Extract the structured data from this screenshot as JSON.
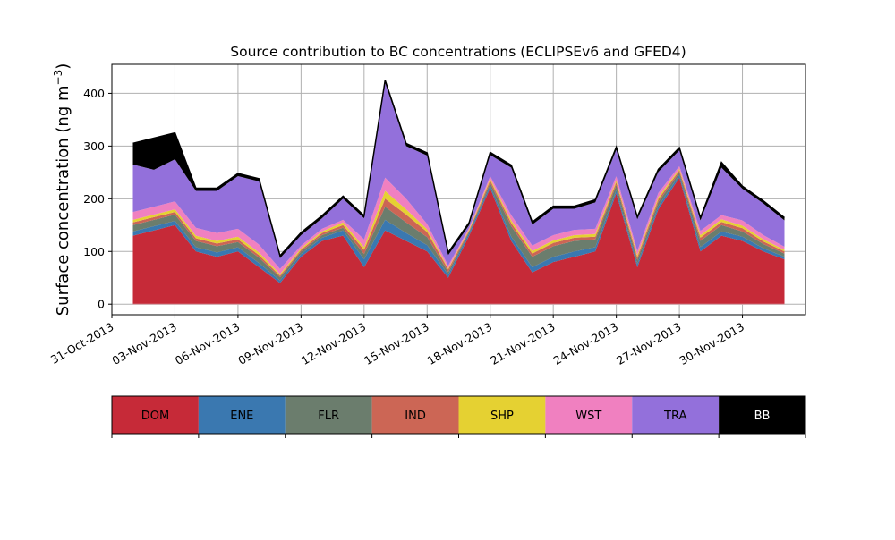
{
  "chart_data": {
    "type": "area",
    "title": "Source contribution to BC concentrations (ECLIPSEv6 and GFED4)",
    "xlabel": "",
    "ylabel": "Surface concentration (ng m⁻³)",
    "ylabel_parts": {
      "text": "Surface concentration (ng m",
      "sup": "−3",
      "close": ")"
    },
    "stacked": true,
    "grid": true,
    "legend_position": "bottom",
    "xlim": [
      "2013-10-31",
      "2013-12-03"
    ],
    "ylim": [
      -20,
      455
    ],
    "yticks": [
      0,
      100,
      200,
      300,
      400
    ],
    "xticks": [
      "31-Oct-2013",
      "03-Nov-2013",
      "06-Nov-2013",
      "09-Nov-2013",
      "12-Nov-2013",
      "15-Nov-2013",
      "18-Nov-2013",
      "21-Nov-2013",
      "24-Nov-2013",
      "27-Nov-2013",
      "30-Nov-2013"
    ],
    "x": [
      "2013-11-01",
      "2013-11-02",
      "2013-11-03",
      "2013-11-04",
      "2013-11-05",
      "2013-11-06",
      "2013-11-07",
      "2013-11-08",
      "2013-11-09",
      "2013-11-10",
      "2013-11-11",
      "2013-11-12",
      "2013-11-13",
      "2013-11-14",
      "2013-11-15",
      "2013-11-16",
      "2013-11-17",
      "2013-11-18",
      "2013-11-19",
      "2013-11-20",
      "2013-11-21",
      "2013-11-22",
      "2013-11-23",
      "2013-11-24",
      "2013-11-25",
      "2013-11-26",
      "2013-11-27",
      "2013-11-28",
      "2013-11-29",
      "2013-11-30",
      "2013-12-01",
      "2013-12-02"
    ],
    "series": [
      {
        "name": "DOM",
        "color": "#c62a38",
        "values": [
          130,
          140,
          150,
          100,
          90,
          100,
          70,
          40,
          90,
          120,
          130,
          70,
          140,
          120,
          100,
          50,
          130,
          220,
          120,
          60,
          80,
          90,
          100,
          210,
          70,
          180,
          240,
          100,
          130,
          120,
          100,
          85
        ]
      },
      {
        "name": "ENE",
        "color": "#3a78b0",
        "values": [
          8,
          8,
          8,
          8,
          8,
          8,
          8,
          5,
          5,
          6,
          10,
          15,
          20,
          15,
          12,
          6,
          5,
          5,
          8,
          10,
          10,
          10,
          8,
          6,
          6,
          6,
          5,
          8,
          8,
          8,
          6,
          5
        ]
      },
      {
        "name": "FLR",
        "color": "#6b7d6d",
        "values": [
          12,
          12,
          12,
          12,
          12,
          10,
          10,
          6,
          5,
          5,
          5,
          10,
          25,
          20,
          15,
          5,
          3,
          5,
          20,
          20,
          20,
          20,
          15,
          10,
          8,
          8,
          5,
          12,
          12,
          10,
          8,
          6
        ]
      },
      {
        "name": "IND",
        "color": "#cc6655",
        "values": [
          5,
          5,
          5,
          5,
          5,
          5,
          5,
          3,
          3,
          4,
          5,
          8,
          15,
          15,
          10,
          5,
          2,
          5,
          6,
          6,
          6,
          6,
          5,
          5,
          5,
          5,
          4,
          6,
          6,
          6,
          5,
          4
        ]
      },
      {
        "name": "SHP",
        "color": "#e5d132",
        "values": [
          5,
          5,
          5,
          5,
          5,
          5,
          5,
          3,
          3,
          3,
          5,
          5,
          15,
          10,
          5,
          2,
          2,
          3,
          5,
          5,
          5,
          5,
          5,
          4,
          4,
          4,
          3,
          5,
          5,
          5,
          4,
          3
        ]
      },
      {
        "name": "WST",
        "color": "#f080c0",
        "values": [
          15,
          15,
          15,
          15,
          15,
          15,
          15,
          10,
          5,
          5,
          5,
          15,
          25,
          20,
          10,
          5,
          3,
          5,
          10,
          10,
          10,
          10,
          10,
          8,
          8,
          8,
          5,
          8,
          8,
          10,
          8,
          6
        ]
      },
      {
        "name": "TRA",
        "color": "#9370db",
        "values": [
          90,
          70,
          80,
          70,
          80,
          100,
          120,
          20,
          20,
          20,
          40,
          40,
          180,
          100,
          130,
          20,
          5,
          40,
          90,
          40,
          50,
          40,
          50,
          50,
          60,
          40,
          30,
          20,
          90,
          60,
          60,
          50
        ]
      },
      {
        "name": "BB",
        "color": "#000000",
        "values": [
          40,
          60,
          50,
          5,
          5,
          5,
          5,
          5,
          5,
          5,
          5,
          5,
          5,
          5,
          5,
          5,
          5,
          5,
          5,
          5,
          5,
          5,
          5,
          5,
          5,
          5,
          5,
          5,
          10,
          5,
          5,
          5
        ]
      }
    ]
  }
}
